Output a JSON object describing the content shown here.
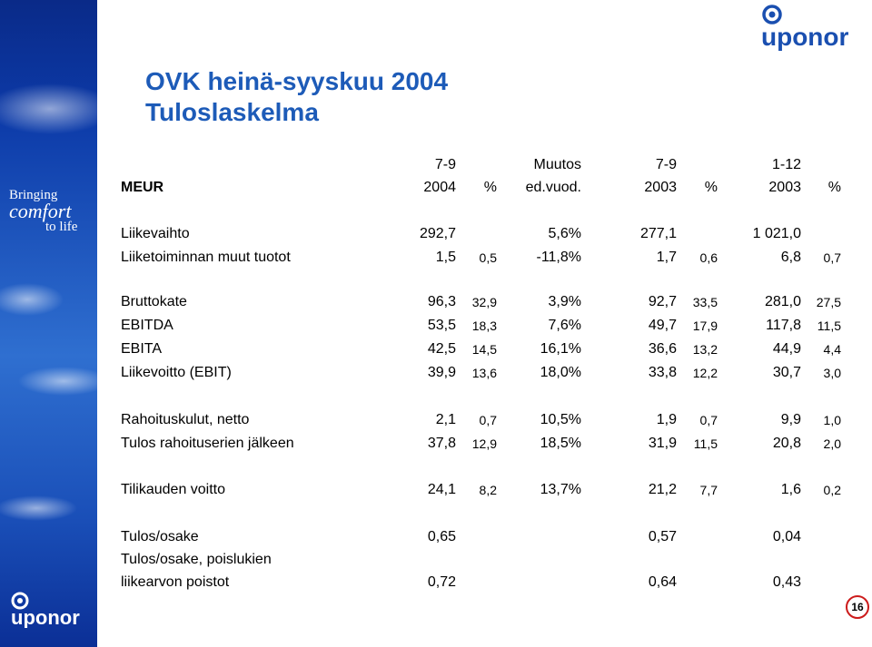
{
  "brand": {
    "logo_text": "uponor",
    "tagline": [
      "Bringing",
      "comfort",
      "to life"
    ]
  },
  "title": {
    "line1": "OVK heinä-syyskuu 2004",
    "line2": "Tuloslaskelma"
  },
  "table": {
    "unit_label": "MEUR",
    "columns": [
      {
        "top": "7-9",
        "bottom": "2004"
      },
      {
        "top": "",
        "bottom": "%"
      },
      {
        "top": "Muutos",
        "bottom": "ed.vuod."
      },
      {
        "top": "7-9",
        "bottom": "2003"
      },
      {
        "top": "",
        "bottom": "%"
      },
      {
        "top": "1-12",
        "bottom": "2003"
      },
      {
        "top": "",
        "bottom": "%"
      }
    ],
    "rows": [
      {
        "label": "Liikevaihto",
        "v": [
          "292,7",
          "",
          "5,6%",
          "277,1",
          "",
          "1 021,0",
          ""
        ]
      },
      {
        "label": "Liiketoiminnan muut tuotot",
        "v": [
          "1,5",
          "0,5",
          "-11,8%",
          "1,7",
          "0,6",
          "6,8",
          "0,7"
        ]
      },
      {
        "label": "Bruttokate",
        "v": [
          "96,3",
          "32,9",
          "3,9%",
          "92,7",
          "33,5",
          "281,0",
          "27,5"
        ]
      },
      {
        "label": "EBITDA",
        "v": [
          "53,5",
          "18,3",
          "7,6%",
          "49,7",
          "17,9",
          "117,8",
          "11,5"
        ]
      },
      {
        "label": "EBITA",
        "v": [
          "42,5",
          "14,5",
          "16,1%",
          "36,6",
          "13,2",
          "44,9",
          "4,4"
        ]
      },
      {
        "label": "Liikevoitto (EBIT)",
        "v": [
          "39,9",
          "13,6",
          "18,0%",
          "33,8",
          "12,2",
          "30,7",
          "3,0"
        ]
      },
      {
        "label": "Rahoituskulut, netto",
        "v": [
          "2,1",
          "0,7",
          "10,5%",
          "1,9",
          "0,7",
          "9,9",
          "1,0"
        ]
      },
      {
        "label": "Tulos rahoituserien jälkeen",
        "v": [
          "37,8",
          "12,9",
          "18,5%",
          "31,9",
          "11,5",
          "20,8",
          "2,0"
        ]
      },
      {
        "label": "Tilikauden voitto",
        "v": [
          "24,1",
          "8,2",
          "13,7%",
          "21,2",
          "7,7",
          "1,6",
          "0,2"
        ]
      },
      {
        "label": "Tulos/osake",
        "v": [
          "0,65",
          "",
          "",
          "0,57",
          "",
          "0,04",
          ""
        ]
      },
      {
        "label": "Tulos/osake, poislukien",
        "v": [
          "",
          "",
          "",
          "",
          "",
          "",
          ""
        ]
      },
      {
        "label": "liikearvon poistot",
        "v": [
          "0,72",
          "",
          "",
          "0,64",
          "",
          "0,43",
          ""
        ]
      }
    ]
  },
  "page_number": "16",
  "colors": {
    "title": "#1d5bb8",
    "brand_blue": "#1a4fb0",
    "page_circle": "#cc1b1b"
  }
}
